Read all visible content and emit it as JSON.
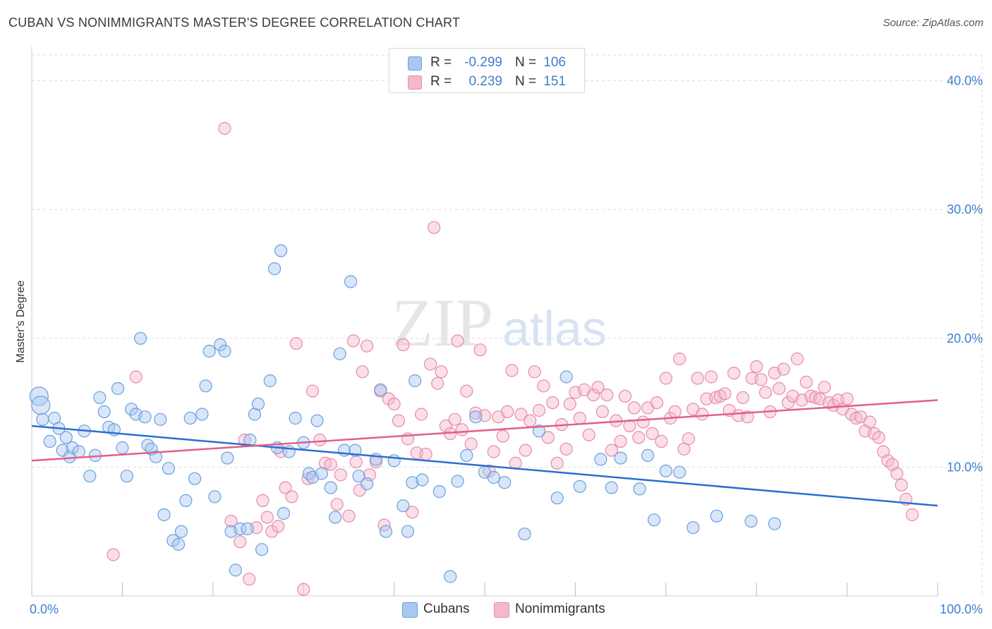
{
  "title": "CUBAN VS NONIMMIGRANTS MASTER'S DEGREE CORRELATION CHART",
  "source": "Source: ZipAtlas.com",
  "watermark": {
    "zip": "ZIP",
    "atlas": "atlas"
  },
  "legend": {
    "rows": [
      {
        "r_label": "R =",
        "r_value": "-0.299",
        "n_label": "N =",
        "n_value": "106"
      },
      {
        "r_label": "R =",
        "r_value": "0.239",
        "n_label": "N =",
        "n_value": "151"
      }
    ]
  },
  "colors": {
    "cubans_fill": "#a9c8f0",
    "cubans_stroke": "#6a9fe0",
    "cubans_line": "#2a6fd0",
    "nonimm_fill": "#f5b8cb",
    "nonimm_stroke": "#e88aa8",
    "nonimm_line": "#e0608a",
    "grid": "#dddddd",
    "axis_text": "#3f7fd1"
  },
  "chart_data": {
    "type": "scatter",
    "title": "CUBAN VS NONIMMIGRANTS MASTER'S DEGREE CORRELATION CHART",
    "xlabel": "",
    "ylabel": "Master's Degree",
    "xlim": [
      0,
      100
    ],
    "ylim": [
      0,
      42
    ],
    "x_tick_labels": [
      "0.0%",
      "100.0%"
    ],
    "y_ticks": [
      10,
      20,
      30,
      40
    ],
    "y_tick_labels": [
      "10.0%",
      "20.0%",
      "30.0%",
      "40.0%"
    ],
    "legend_position": "top-center",
    "series": [
      {
        "name": "Cubans",
        "r": -0.299,
        "n": 106,
        "trend": {
          "x": [
            0,
            100
          ],
          "y": [
            13.2,
            7.0
          ]
        },
        "points": [
          [
            0.8,
            15.5
          ],
          [
            1.0,
            14.8
          ],
          [
            1.2,
            13.7
          ],
          [
            2.0,
            12.0
          ],
          [
            2.5,
            13.8
          ],
          [
            3.0,
            13.0
          ],
          [
            3.4,
            11.3
          ],
          [
            3.8,
            12.3
          ],
          [
            4.2,
            10.8
          ],
          [
            4.5,
            11.5
          ],
          [
            5.2,
            11.2
          ],
          [
            5.8,
            12.8
          ],
          [
            6.4,
            9.3
          ],
          [
            7.0,
            10.9
          ],
          [
            7.5,
            15.4
          ],
          [
            8.0,
            14.3
          ],
          [
            8.5,
            13.1
          ],
          [
            9.1,
            12.9
          ],
          [
            9.5,
            16.1
          ],
          [
            10.0,
            11.5
          ],
          [
            10.5,
            9.3
          ],
          [
            11.0,
            14.5
          ],
          [
            11.5,
            14.1
          ],
          [
            12.0,
            20.0
          ],
          [
            12.5,
            13.9
          ],
          [
            12.8,
            11.7
          ],
          [
            13.2,
            11.4
          ],
          [
            13.7,
            10.8
          ],
          [
            14.2,
            13.7
          ],
          [
            14.6,
            6.3
          ],
          [
            15.1,
            9.9
          ],
          [
            15.6,
            4.3
          ],
          [
            16.2,
            4.0
          ],
          [
            16.5,
            5.0
          ],
          [
            17.0,
            7.4
          ],
          [
            17.5,
            13.8
          ],
          [
            18.0,
            9.1
          ],
          [
            18.8,
            14.1
          ],
          [
            19.2,
            16.3
          ],
          [
            19.6,
            19.0
          ],
          [
            20.2,
            7.7
          ],
          [
            20.8,
            19.5
          ],
          [
            21.3,
            19.0
          ],
          [
            21.6,
            10.7
          ],
          [
            22.0,
            5.0
          ],
          [
            22.5,
            2.0
          ],
          [
            23.0,
            5.2
          ],
          [
            23.8,
            5.2
          ],
          [
            24.1,
            12.1
          ],
          [
            24.6,
            14.1
          ],
          [
            25.0,
            14.9
          ],
          [
            25.4,
            3.6
          ],
          [
            26.3,
            16.7
          ],
          [
            26.8,
            25.4
          ],
          [
            27.1,
            11.5
          ],
          [
            27.5,
            26.8
          ],
          [
            27.8,
            6.4
          ],
          [
            28.4,
            11.2
          ],
          [
            29.1,
            13.8
          ],
          [
            30.0,
            11.9
          ],
          [
            30.6,
            9.5
          ],
          [
            31.0,
            9.2
          ],
          [
            31.5,
            13.6
          ],
          [
            32.0,
            9.5
          ],
          [
            33.0,
            8.4
          ],
          [
            33.5,
            6.1
          ],
          [
            34.0,
            18.8
          ],
          [
            34.5,
            11.3
          ],
          [
            35.2,
            24.4
          ],
          [
            35.7,
            11.3
          ],
          [
            36.1,
            9.3
          ],
          [
            37.0,
            8.7
          ],
          [
            38.0,
            10.6
          ],
          [
            38.5,
            16.0
          ],
          [
            39.1,
            5.0
          ],
          [
            40.0,
            10.5
          ],
          [
            41.0,
            7.0
          ],
          [
            41.5,
            5.0
          ],
          [
            42.0,
            8.8
          ],
          [
            42.3,
            16.7
          ],
          [
            43.1,
            9.0
          ],
          [
            45.0,
            8.1
          ],
          [
            46.2,
            1.5
          ],
          [
            47.0,
            8.9
          ],
          [
            48.0,
            10.9
          ],
          [
            49.0,
            13.9
          ],
          [
            50.0,
            9.6
          ],
          [
            51.0,
            9.2
          ],
          [
            52.2,
            8.8
          ],
          [
            54.4,
            4.8
          ],
          [
            56.0,
            12.8
          ],
          [
            58.0,
            7.6
          ],
          [
            59.0,
            17.0
          ],
          [
            60.5,
            8.5
          ],
          [
            62.8,
            10.6
          ],
          [
            64.0,
            8.4
          ],
          [
            65.0,
            10.7
          ],
          [
            67.1,
            8.3
          ],
          [
            68.0,
            10.9
          ],
          [
            68.7,
            5.9
          ],
          [
            70.0,
            9.7
          ],
          [
            71.5,
            9.6
          ],
          [
            73.0,
            5.3
          ],
          [
            75.6,
            6.2
          ],
          [
            79.4,
            5.8
          ],
          [
            82.0,
            5.6
          ]
        ]
      },
      {
        "name": "Nonimmigrants",
        "r": 0.239,
        "n": 151,
        "trend": {
          "x": [
            0,
            100
          ],
          "y": [
            10.5,
            15.2
          ]
        },
        "points": [
          [
            9.0,
            3.2
          ],
          [
            11.5,
            17.0
          ],
          [
            21.3,
            36.3
          ],
          [
            22.0,
            5.8
          ],
          [
            23.0,
            4.2
          ],
          [
            23.5,
            12.1
          ],
          [
            24.0,
            1.3
          ],
          [
            24.8,
            5.3
          ],
          [
            25.5,
            7.4
          ],
          [
            26.0,
            6.1
          ],
          [
            26.5,
            5.0
          ],
          [
            27.2,
            5.4
          ],
          [
            27.5,
            11.2
          ],
          [
            28.0,
            8.4
          ],
          [
            28.7,
            7.7
          ],
          [
            29.2,
            19.6
          ],
          [
            30.0,
            0.5
          ],
          [
            30.5,
            9.1
          ],
          [
            31.0,
            15.9
          ],
          [
            31.8,
            12.1
          ],
          [
            32.4,
            10.3
          ],
          [
            33.0,
            10.2
          ],
          [
            33.7,
            7.1
          ],
          [
            34.1,
            9.4
          ],
          [
            35.0,
            6.2
          ],
          [
            35.5,
            19.8
          ],
          [
            35.8,
            10.4
          ],
          [
            36.2,
            8.2
          ],
          [
            36.5,
            17.4
          ],
          [
            37.0,
            19.4
          ],
          [
            37.3,
            9.4
          ],
          [
            38.0,
            10.4
          ],
          [
            38.5,
            15.9
          ],
          [
            38.9,
            5.5
          ],
          [
            39.4,
            15.3
          ],
          [
            40.0,
            14.9
          ],
          [
            40.5,
            13.6
          ],
          [
            41.0,
            19.5
          ],
          [
            41.5,
            12.2
          ],
          [
            42.0,
            6.5
          ],
          [
            42.5,
            11.1
          ],
          [
            43.0,
            14.1
          ],
          [
            43.5,
            11.0
          ],
          [
            44.0,
            18.0
          ],
          [
            44.4,
            28.6
          ],
          [
            44.8,
            16.5
          ],
          [
            45.2,
            17.4
          ],
          [
            45.7,
            13.2
          ],
          [
            46.2,
            12.6
          ],
          [
            46.7,
            13.7
          ],
          [
            47.0,
            19.8
          ],
          [
            47.5,
            12.9
          ],
          [
            48.0,
            15.9
          ],
          [
            48.5,
            11.8
          ],
          [
            49.0,
            14.2
          ],
          [
            49.5,
            19.1
          ],
          [
            50.0,
            14.0
          ],
          [
            50.5,
            9.7
          ],
          [
            51.0,
            11.2
          ],
          [
            51.5,
            13.9
          ],
          [
            52.0,
            12.4
          ],
          [
            52.5,
            14.3
          ],
          [
            53.0,
            17.5
          ],
          [
            53.4,
            10.3
          ],
          [
            54.0,
            14.1
          ],
          [
            54.5,
            11.3
          ],
          [
            55.0,
            13.6
          ],
          [
            55.5,
            17.4
          ],
          [
            56.0,
            14.4
          ],
          [
            56.5,
            16.3
          ],
          [
            57.0,
            12.3
          ],
          [
            57.5,
            15.0
          ],
          [
            58.0,
            10.3
          ],
          [
            58.5,
            13.3
          ],
          [
            59.0,
            11.4
          ],
          [
            59.4,
            14.9
          ],
          [
            60.0,
            15.8
          ],
          [
            60.5,
            13.8
          ],
          [
            61.0,
            16.0
          ],
          [
            61.5,
            12.5
          ],
          [
            62.0,
            15.6
          ],
          [
            62.5,
            16.2
          ],
          [
            63.0,
            14.3
          ],
          [
            63.5,
            15.6
          ],
          [
            64.0,
            11.3
          ],
          [
            64.5,
            13.6
          ],
          [
            65.0,
            12.0
          ],
          [
            65.5,
            15.5
          ],
          [
            66.0,
            13.2
          ],
          [
            66.5,
            14.6
          ],
          [
            67.0,
            12.3
          ],
          [
            67.5,
            13.5
          ],
          [
            68.0,
            14.6
          ],
          [
            68.5,
            12.6
          ],
          [
            69.0,
            15.0
          ],
          [
            69.5,
            12.0
          ],
          [
            70.0,
            16.9
          ],
          [
            70.5,
            13.8
          ],
          [
            71.0,
            14.3
          ],
          [
            71.5,
            18.4
          ],
          [
            72.0,
            11.4
          ],
          [
            72.5,
            12.2
          ],
          [
            73.0,
            14.5
          ],
          [
            73.5,
            16.9
          ],
          [
            74.0,
            14.1
          ],
          [
            74.5,
            15.3
          ],
          [
            75.0,
            17.0
          ],
          [
            75.5,
            15.4
          ],
          [
            76.0,
            15.5
          ],
          [
            76.5,
            15.7
          ],
          [
            77.0,
            14.4
          ],
          [
            77.5,
            17.3
          ],
          [
            78.0,
            14.0
          ],
          [
            78.5,
            15.4
          ],
          [
            79.0,
            13.9
          ],
          [
            79.5,
            16.9
          ],
          [
            80.0,
            17.8
          ],
          [
            80.5,
            16.8
          ],
          [
            81.0,
            15.8
          ],
          [
            81.5,
            14.3
          ],
          [
            82.0,
            17.3
          ],
          [
            82.5,
            16.1
          ],
          [
            83.0,
            17.6
          ],
          [
            83.5,
            15.0
          ],
          [
            84.0,
            15.5
          ],
          [
            84.5,
            18.4
          ],
          [
            85.0,
            15.2
          ],
          [
            85.5,
            16.6
          ],
          [
            86.0,
            15.5
          ],
          [
            86.5,
            15.4
          ],
          [
            87.0,
            15.3
          ],
          [
            87.5,
            16.2
          ],
          [
            88.0,
            15.0
          ],
          [
            88.5,
            14.8
          ],
          [
            89.0,
            15.2
          ],
          [
            89.5,
            14.5
          ],
          [
            90.0,
            15.3
          ],
          [
            90.5,
            14.1
          ],
          [
            91.0,
            13.8
          ],
          [
            91.5,
            13.9
          ],
          [
            92.0,
            12.8
          ],
          [
            92.5,
            13.5
          ],
          [
            93.0,
            12.6
          ],
          [
            93.5,
            12.3
          ],
          [
            94.0,
            11.2
          ],
          [
            94.5,
            10.5
          ],
          [
            95.0,
            10.2
          ],
          [
            95.5,
            9.5
          ],
          [
            96.0,
            8.6
          ],
          [
            96.5,
            7.5
          ],
          [
            97.2,
            6.3
          ]
        ]
      }
    ]
  }
}
